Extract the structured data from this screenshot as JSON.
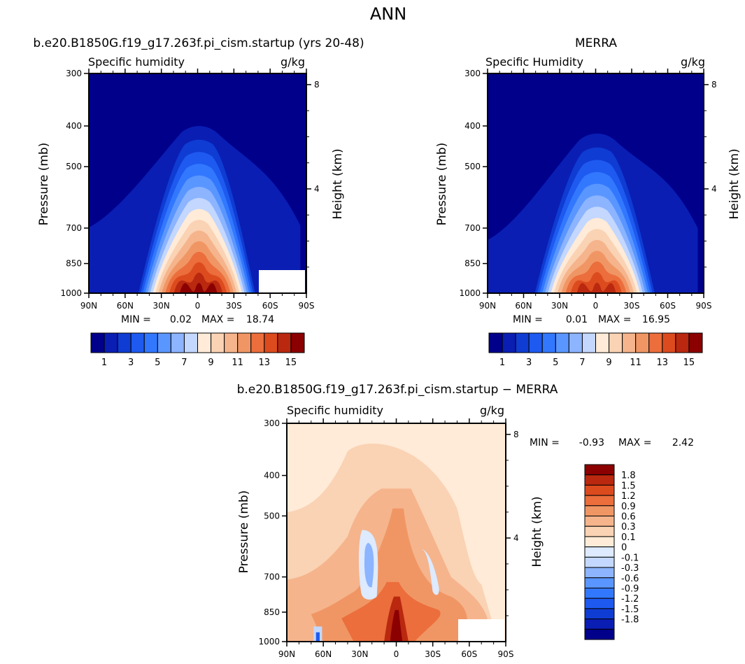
{
  "page": {
    "title": "ANN"
  },
  "scale": {
    "main": {
      "colors": [
        "#00008b",
        "#0a1eb4",
        "#0f3cd2",
        "#1e5af0",
        "#3278ff",
        "#5a96ff",
        "#8cb4ff",
        "#c3d7ff",
        "#ffebd7",
        "#fad2b4",
        "#f5b48c",
        "#f09664",
        "#eb6e3c",
        "#dc4b1e",
        "#b9280f",
        "#8b0000"
      ],
      "labels": [
        "1",
        "3",
        "5",
        "7",
        "9",
        "11",
        "13",
        "15"
      ]
    },
    "diff": {
      "colors": [
        "#00008b",
        "#0a1eb4",
        "#0f3cd2",
        "#1e5af0",
        "#3278ff",
        "#5a96ff",
        "#8cb4ff",
        "#c3d7ff",
        "#ddeaff",
        "#ffebd7",
        "#fad2b4",
        "#f5b48c",
        "#f09664",
        "#eb6e3c",
        "#dc4b1e",
        "#b9280f",
        "#8b0000"
      ],
      "labels": [
        "1.8",
        "1.5",
        "1.2",
        "0.9",
        "0.6",
        "0.3",
        "0.1",
        "0",
        "-0.1",
        "-0.3",
        "-0.6",
        "-0.9",
        "-1.2",
        "-1.5",
        "-1.8"
      ]
    }
  },
  "chart_data": [
    {
      "type": "heatmap",
      "title": "b.e20.B1850G.f19_g17.263f.pi_cism.startup (yrs 20-48)",
      "variable": "Specific humidity",
      "units": "g/kg",
      "xlabel": "",
      "ylabel": "Pressure (mb)",
      "y2label": "Height (km)",
      "xticks": [
        "90N",
        "60N",
        "30N",
        "0",
        "30S",
        "60S",
        "90S"
      ],
      "yticks": [
        1000,
        850,
        700,
        500,
        400,
        300
      ],
      "y2ticks": [
        4,
        8
      ],
      "ylim": [
        1000,
        300
      ],
      "log_pressure_axis": true,
      "stats": {
        "min_label": "MIN =",
        "min": "0.02",
        "max_label": "MAX =",
        "max": "18.74"
      },
      "peak_level": 16,
      "dome_top_pressure": 370,
      "dome_half_width_deg": 48,
      "tropopause_edge": {
        "north_lat": 90,
        "north_pressure": 700,
        "south_lat": -85,
        "south_pressure": 690
      },
      "missing_region": {
        "lat_from": -50,
        "lat_to": -90,
        "p_from": 930,
        "p_to": 1000
      }
    },
    {
      "type": "heatmap",
      "title": "MERRA",
      "variable": "Specific Humidity",
      "units": "g/kg",
      "xlabel": "",
      "ylabel": "Pressure (mb)",
      "y2label": "Height (km)",
      "xticks": [
        "90N",
        "60N",
        "30N",
        "0",
        "30S",
        "60S",
        "90S"
      ],
      "yticks": [
        1000,
        850,
        700,
        500,
        400,
        300
      ],
      "y2ticks": [
        4,
        8
      ],
      "ylim": [
        1000,
        300
      ],
      "log_pressure_axis": true,
      "stats": {
        "min_label": "MIN =",
        "min": "0.01",
        "max_label": "MAX =",
        "max": "16.95"
      },
      "peak_level": 15,
      "dome_top_pressure": 385,
      "dome_half_width_deg": 50,
      "tropopause_edge": {
        "north_lat": 90,
        "north_pressure": 750,
        "south_lat": -85,
        "south_pressure": 700
      }
    },
    {
      "type": "heatmap",
      "title": "b.e20.B1850G.f19_g17.263f.pi_cism.startup − MERRA",
      "variable": "Specific humidity",
      "units": "g/kg",
      "xlabel": "",
      "ylabel": "Pressure (mb)",
      "y2label": "Height (km)",
      "xticks": [
        "90N",
        "60N",
        "30N",
        "0",
        "30S",
        "60S",
        "90S"
      ],
      "yticks": [
        1000,
        850,
        700,
        500,
        400,
        300
      ],
      "y2ticks": [
        4,
        8
      ],
      "ylim": [
        1000,
        300
      ],
      "log_pressure_axis": true,
      "stats": {
        "min_label": "MIN =",
        "min": "-0.93",
        "max_label": "MAX =",
        "max": "2.42"
      },
      "missing_region": {
        "lat_from": -45,
        "lat_to": -90,
        "p_from": 930,
        "p_to": 1000
      }
    }
  ]
}
